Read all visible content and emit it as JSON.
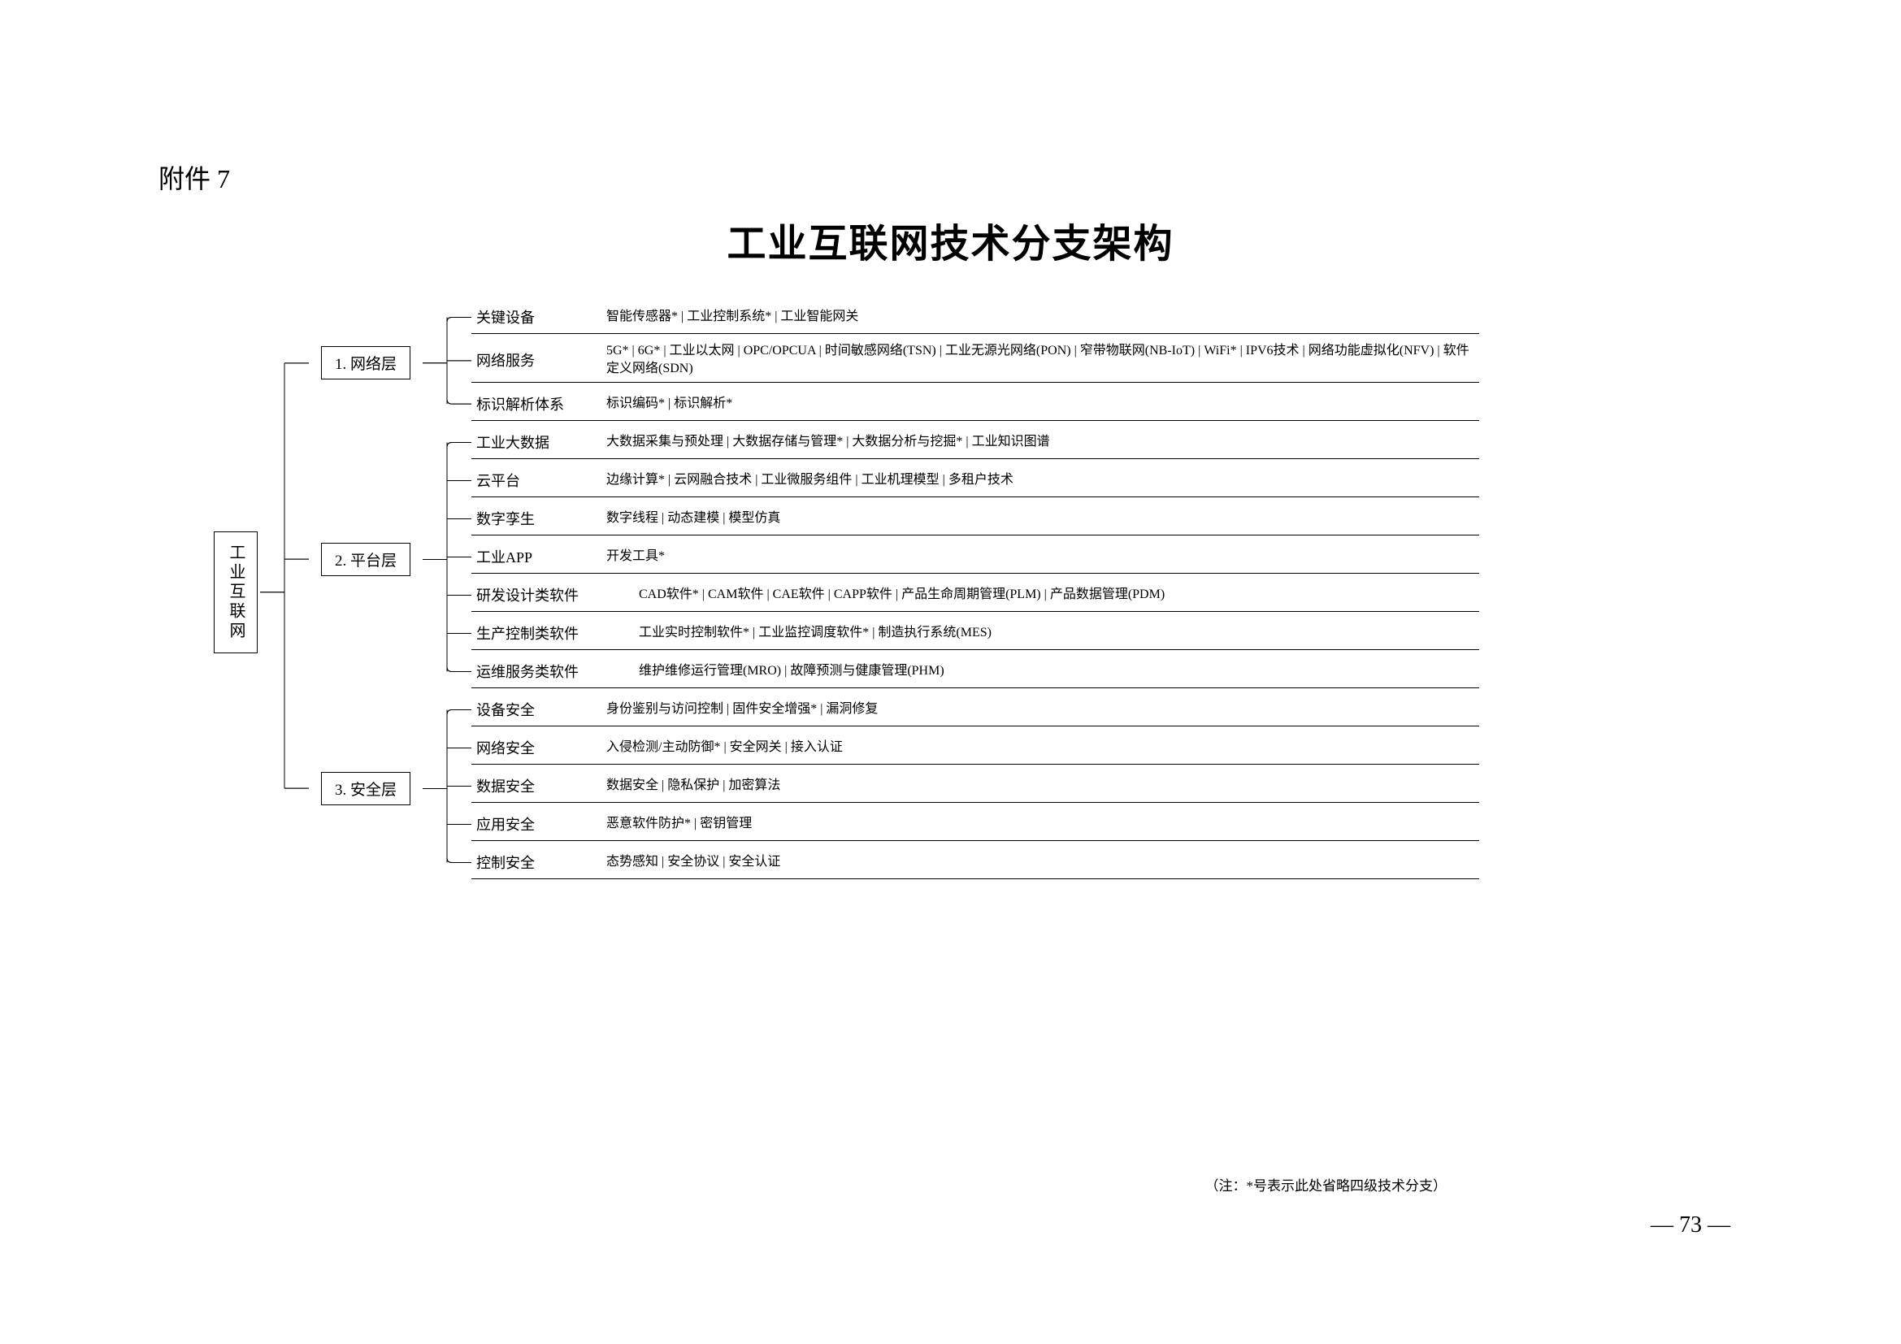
{
  "attachment_label": "附件 7",
  "title": "工业互联网技术分支架构",
  "root": "工业互联网",
  "layers": [
    {
      "label": "1. 网络层",
      "items": [
        {
          "label": "关键设备",
          "details": "智能传感器* | 工业控制系统* | 工业智能网关"
        },
        {
          "label": "网络服务",
          "details": "5G* | 6G* | 工业以太网 | OPC/OPCUA | 时间敏感网络(TSN) | 工业无源光网络(PON) | 窄带物联网(NB-IoT) | WiFi* | IPV6技术 | 网络功能虚拟化(NFV) | 软件定义网络(SDN)"
        },
        {
          "label": "标识解析体系",
          "details": "标识编码* | 标识解析*"
        }
      ]
    },
    {
      "label": "2. 平台层",
      "items": [
        {
          "label": "工业大数据",
          "details": "大数据采集与预处理 | 大数据存储与管理* | 大数据分析与挖掘* | 工业知识图谱"
        },
        {
          "label": "云平台",
          "details": "边缘计算* | 云网融合技术 | 工业微服务组件 | 工业机理模型 | 多租户技术"
        },
        {
          "label": "数字孪生",
          "details": "数字线程 | 动态建模 | 模型仿真"
        },
        {
          "label": "工业APP",
          "details": "开发工具*"
        },
        {
          "label": "研发设计类软件",
          "details": "CAD软件* | CAM软件 | CAE软件 | CAPP软件 | 产品生命周期管理(PLM) | 产品数据管理(PDM)",
          "wide": true
        },
        {
          "label": "生产控制类软件",
          "details": "工业实时控制软件* | 工业监控调度软件* | 制造执行系统(MES)",
          "wide": true
        },
        {
          "label": "运维服务类软件",
          "details": "维护维修运行管理(MRO) | 故障预测与健康管理(PHM)",
          "wide": true
        }
      ]
    },
    {
      "label": "3. 安全层",
      "items": [
        {
          "label": "设备安全",
          "details": "身份鉴别与访问控制 | 固件安全增强* | 漏洞修复"
        },
        {
          "label": "网络安全",
          "details": "入侵检测/主动防御* | 安全网关 | 接入认证"
        },
        {
          "label": "数据安全",
          "details": "数据安全 | 隐私保护 | 加密算法"
        },
        {
          "label": "应用安全",
          "details": "恶意软件防护* | 密钥管理"
        },
        {
          "label": "控制安全",
          "details": "态势感知 | 安全协议 | 安全认证"
        }
      ]
    }
  ],
  "note": "（注：*号表示此处省略四级技术分支）",
  "page_number": "— 73 —",
  "colors": {
    "text": "#000000",
    "line": "#000000",
    "bg": "#ffffff"
  }
}
